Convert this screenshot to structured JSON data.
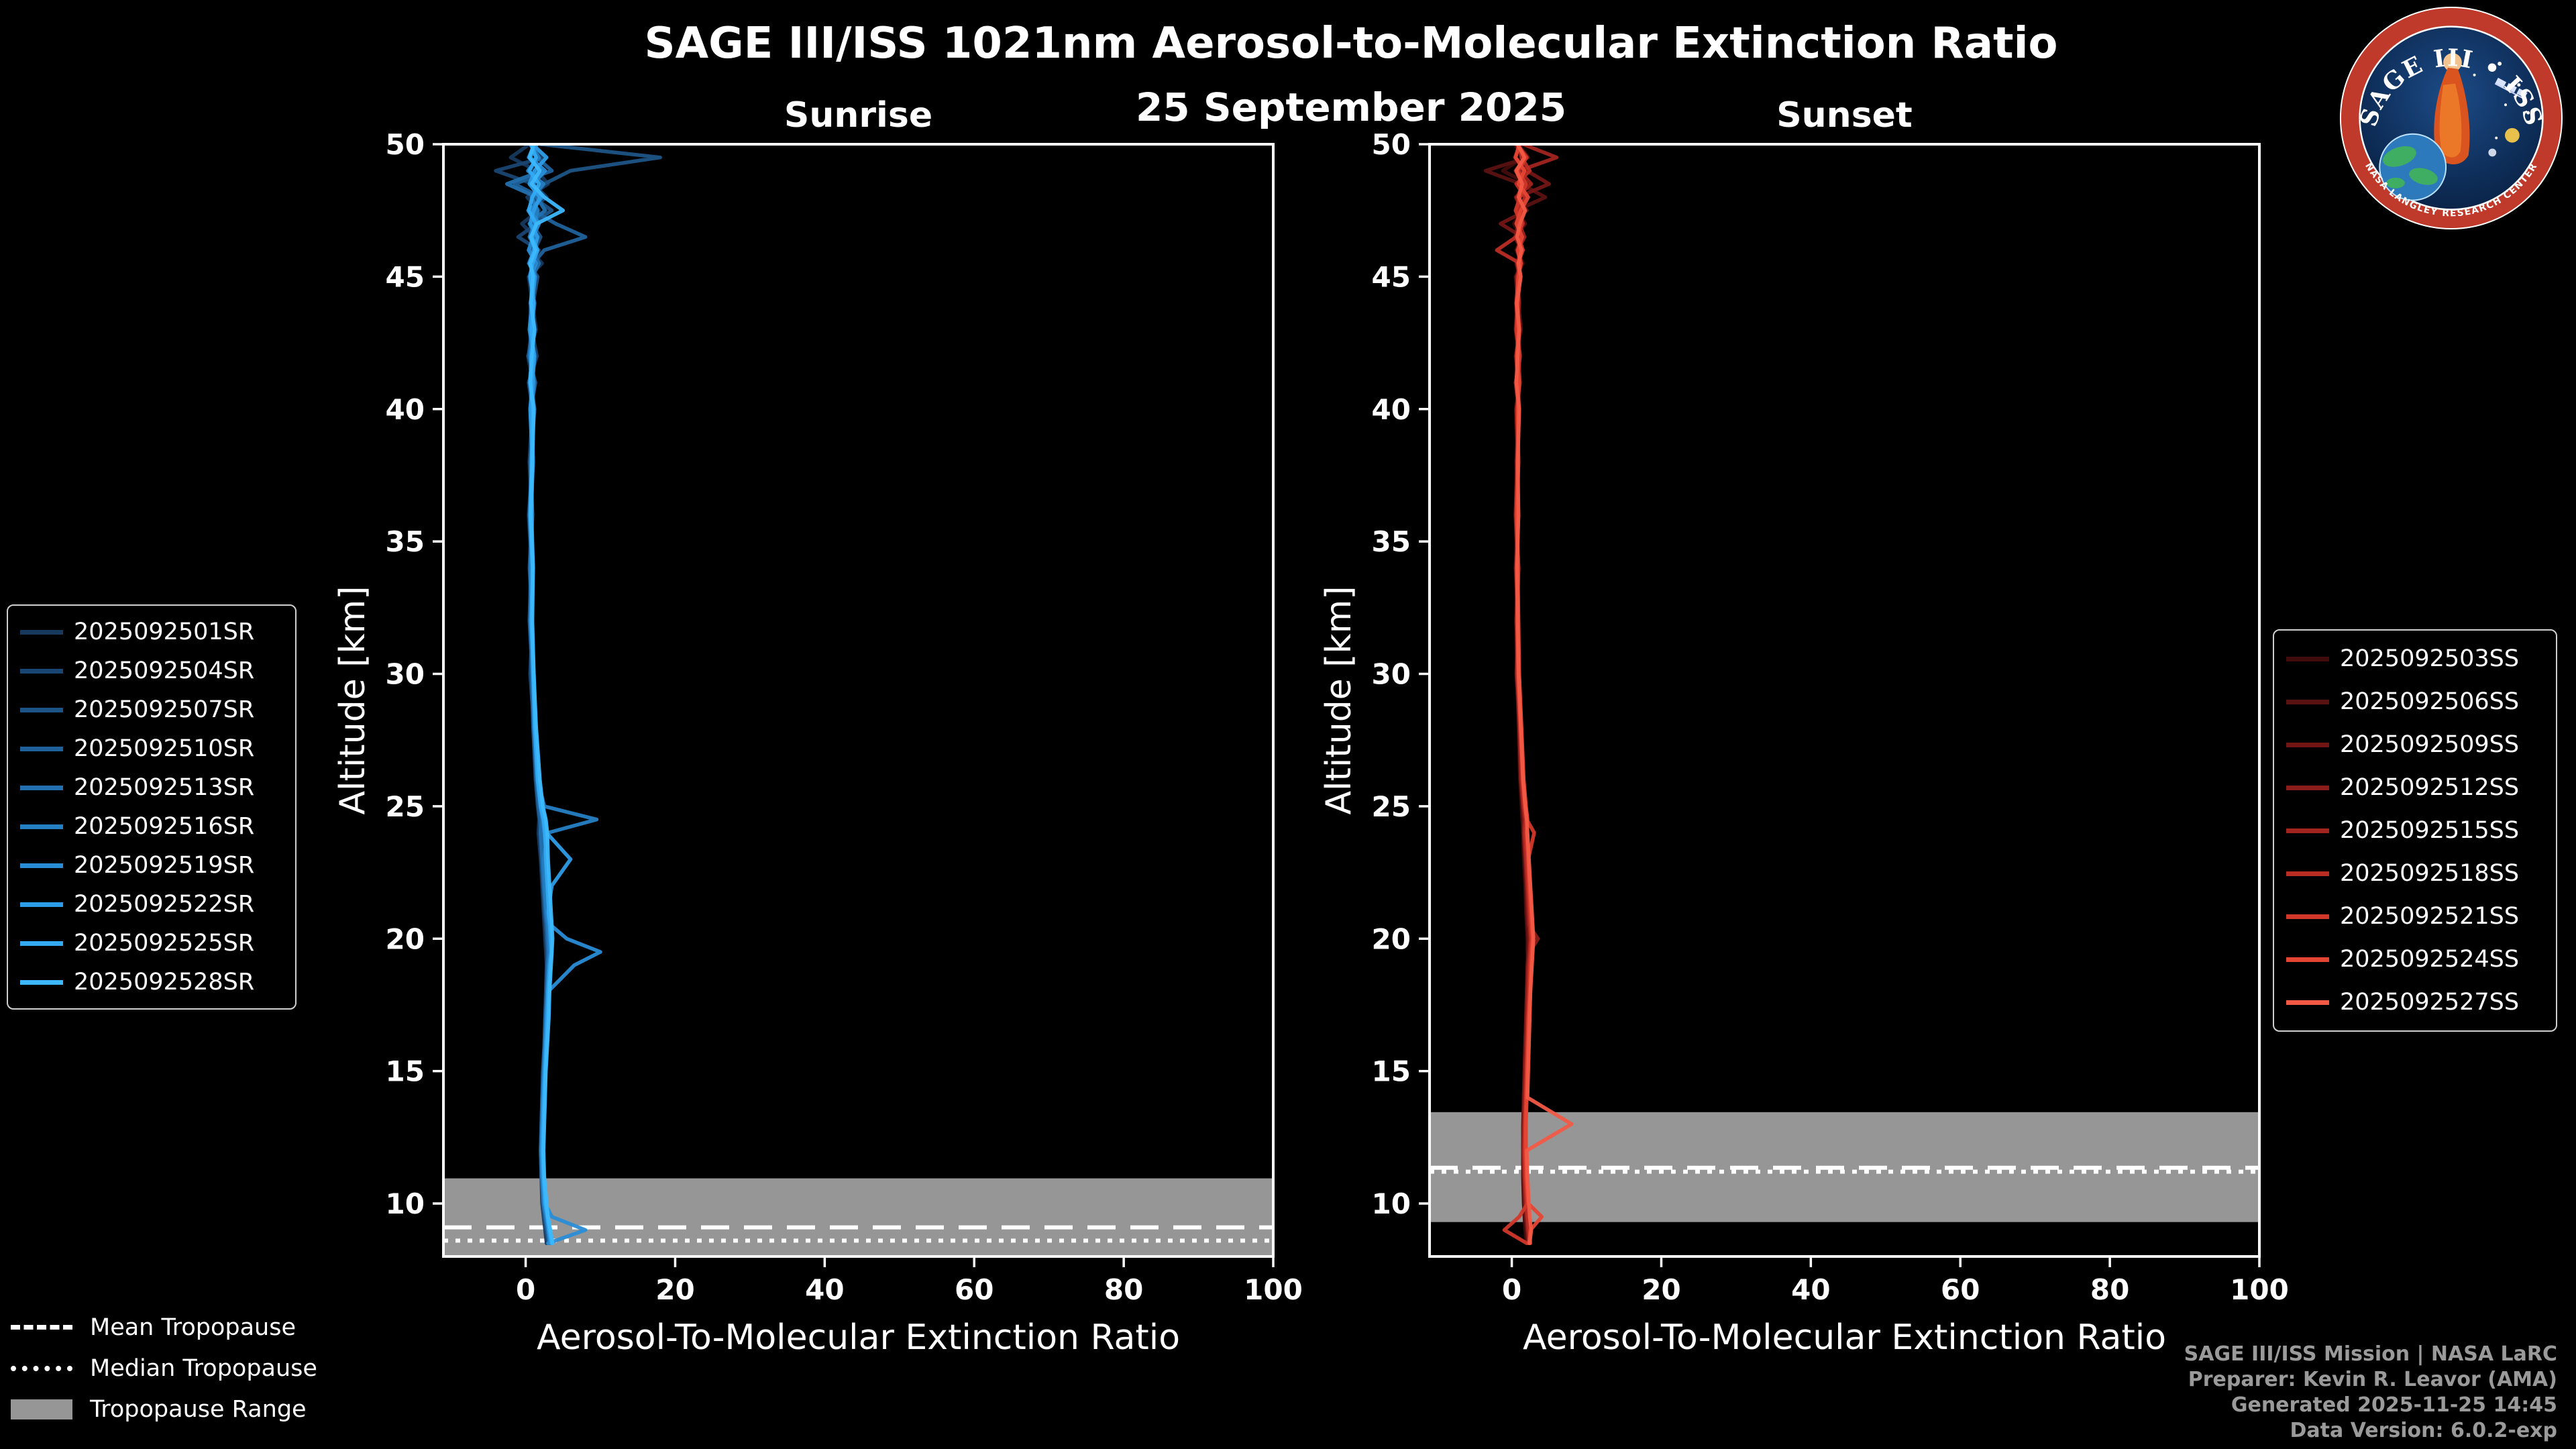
{
  "title": "SAGE III/ISS 1021nm Aerosol-to-Molecular Extinction Ratio",
  "date": "25 September 2025",
  "panels": [
    {
      "title": "Sunrise",
      "xlabel": "Aerosol-To-Molecular Extinction Ratio",
      "ylabel": "Altitude [km]"
    },
    {
      "title": "Sunset",
      "xlabel": "Aerosol-To-Molecular Extinction Ratio",
      "ylabel": "Altitude [km]"
    }
  ],
  "chart_data": {
    "type": "line",
    "xlim": [
      -11,
      100
    ],
    "ylim": [
      8,
      50
    ],
    "x_ticks": [
      0,
      20,
      40,
      60,
      80,
      100
    ],
    "y_ticks": [
      10,
      15,
      20,
      25,
      30,
      35,
      40,
      45,
      50
    ],
    "band_color": "#969696",
    "frame_color": "#ffffff",
    "altitudes": [
      50,
      49.5,
      49,
      48.5,
      48,
      47.5,
      47,
      46.5,
      46,
      45.5,
      45,
      44,
      43,
      42,
      41,
      40,
      38,
      36,
      34,
      32,
      30,
      28,
      26,
      25,
      24.5,
      24,
      23,
      22,
      21,
      20.5,
      20,
      19.5,
      19,
      18,
      17,
      16,
      15,
      14,
      13,
      12,
      11,
      10,
      9.5,
      9,
      8.5
    ],
    "sunrise": {
      "tropopause": {
        "mean": 9.1,
        "median": 8.6,
        "range": [
          8.0,
          10.95
        ]
      },
      "series": [
        {
          "name": "2025092501SR",
          "color": "#16395d",
          "values": [
            0.5,
            -2.0,
            1.5,
            3.0,
            0.2,
            1.8,
            -0.5,
            1.2,
            0.6,
            2.2,
            0.4,
            0.9,
            1.4,
            0.3,
            1.0,
            0.6,
            0.9,
            0.4,
            0.8,
            0.6,
            0.8,
            1.0,
            1.3,
            1.6,
            1.8,
            1.7,
            2.0,
            2.2,
            2.4,
            2.5,
            2.6,
            2.7,
            2.8,
            2.7,
            2.6,
            2.5,
            2.4,
            2.3,
            2.2,
            2.1,
            2.1,
            2.2,
            2.4,
            2.6,
            2.8
          ]
        },
        {
          "name": "2025092504SR",
          "color": "#194672",
          "values": [
            1.0,
            2.5,
            -4.0,
            1.0,
            2.8,
            0.3,
            1.5,
            -1.0,
            1.8,
            0.5,
            1.2,
            0.6,
            0.8,
            1.5,
            0.4,
            0.9,
            0.5,
            0.8,
            0.5,
            0.9,
            0.6,
            1.1,
            1.4,
            1.7,
            2.0,
            1.9,
            2.1,
            2.3,
            2.5,
            2.7,
            2.8,
            2.9,
            2.8,
            2.7,
            2.6,
            2.5,
            2.4,
            2.2,
            2.1,
            2.0,
            2.1,
            2.3,
            2.5,
            2.7,
            3.0
          ]
        },
        {
          "name": "2025092507SR",
          "color": "#1c5486",
          "values": [
            2.0,
            18.0,
            6.0,
            2.5,
            1.0,
            3.5,
            0.8,
            2.0,
            1.2,
            0.4,
            1.6,
            1.0,
            0.5,
            1.1,
            0.7,
            1.2,
            0.6,
            0.9,
            0.7,
            0.5,
            0.9,
            1.2,
            1.5,
            1.8,
            2.0,
            2.1,
            2.2,
            2.4,
            2.6,
            2.7,
            2.8,
            2.9,
            3.0,
            2.8,
            2.7,
            2.6,
            2.4,
            2.3,
            2.2,
            2.1,
            2.2,
            2.3,
            2.5,
            2.8,
            3.1
          ]
        },
        {
          "name": "2025092510SR",
          "color": "#1f629b",
          "values": [
            0.8,
            1.5,
            3.5,
            -1.5,
            2.0,
            1.0,
            4.0,
            8.0,
            2.5,
            1.0,
            0.5,
            1.2,
            0.8,
            0.4,
            1.3,
            0.7,
            1.0,
            0.6,
            0.9,
            0.7,
            0.8,
            1.0,
            1.4,
            1.7,
            1.9,
            2.0,
            2.3,
            2.5,
            2.6,
            2.8,
            2.9,
            3.0,
            2.9,
            2.8,
            2.6,
            2.5,
            2.3,
            2.2,
            2.1,
            2.0,
            2.1,
            2.4,
            2.6,
            2.9,
            3.2
          ]
        },
        {
          "name": "2025092513SR",
          "color": "#2270af",
          "values": [
            1.2,
            0.4,
            2.2,
            -2.5,
            1.5,
            2.6,
            0.5,
            1.5,
            0.8,
            1.8,
            0.9,
            0.7,
            1.1,
            0.9,
            0.5,
            1.0,
            0.8,
            0.5,
            0.8,
            0.6,
            0.9,
            1.1,
            1.5,
            1.9,
            2.2,
            2.0,
            2.2,
            2.4,
            2.7,
            2.9,
            3.0,
            3.1,
            3.0,
            2.9,
            2.7,
            2.6,
            2.4,
            2.3,
            2.2,
            2.1,
            2.2,
            2.5,
            2.7,
            3.0,
            3.3
          ]
        },
        {
          "name": "2025092516SR",
          "color": "#257fc3",
          "values": [
            0.6,
            1.8,
            0.3,
            2.4,
            0.8,
            1.6,
            1.2,
            0.5,
            1.5,
            0.7,
            1.3,
            0.8,
            0.5,
            1.0,
            0.8,
            1.1,
            0.7,
            0.9,
            0.6,
            0.8,
            1.0,
            1.2,
            1.6,
            2.5,
            9.5,
            3.0,
            2.4,
            2.6,
            2.8,
            3.0,
            3.1,
            3.2,
            3.1,
            2.9,
            2.8,
            2.6,
            2.5,
            2.3,
            2.2,
            2.1,
            2.2,
            2.4,
            2.7,
            3.0,
            3.2
          ]
        },
        {
          "name": "2025092519SR",
          "color": "#298dd6",
          "values": [
            1.5,
            0.6,
            2.6,
            1.0,
            2.2,
            0.6,
            1.8,
            1.0,
            0.4,
            1.4,
            0.7,
            1.0,
            0.9,
            0.6,
            1.1,
            0.8,
            1.0,
            0.7,
            0.9,
            0.8,
            1.0,
            1.3,
            1.7,
            2.0,
            2.3,
            2.5,
            2.8,
            3.0,
            3.2,
            3.4,
            5.5,
            10.0,
            6.5,
            3.0,
            2.8,
            2.7,
            2.5,
            2.4,
            2.3,
            2.2,
            2.3,
            2.6,
            3.5,
            8.0,
            3.0
          ]
        },
        {
          "name": "2025092522SR",
          "color": "#2d9ce6",
          "values": [
            0.9,
            2.8,
            1.2,
            0.5,
            1.9,
            1.1,
            0.6,
            1.6,
            1.1,
            0.5,
            1.2,
            0.9,
            0.6,
            1.2,
            0.9,
            0.6,
            0.9,
            0.8,
            1.0,
            0.7,
            1.1,
            1.3,
            1.8,
            2.2,
            2.6,
            2.8,
            6.0,
            3.5,
            3.0,
            3.2,
            3.3,
            3.4,
            3.2,
            3.0,
            2.9,
            2.7,
            2.6,
            2.4,
            2.3,
            2.2,
            2.4,
            2.7,
            2.9,
            3.1,
            3.4
          ]
        },
        {
          "name": "2025092525SR",
          "color": "#33aaf2",
          "values": [
            0.7,
            1.4,
            0.5,
            1.8,
            0.9,
            0.4,
            1.4,
            0.8,
            1.6,
            0.9,
            0.6,
            1.1,
            0.8,
            1.0,
            0.7,
            0.9,
            0.8,
            0.6,
            0.9,
            0.8,
            1.0,
            1.2,
            1.6,
            2.0,
            2.4,
            2.6,
            2.7,
            2.9,
            3.1,
            3.3,
            3.4,
            3.5,
            3.3,
            3.1,
            3.0,
            2.8,
            2.6,
            2.5,
            2.4,
            2.3,
            2.4,
            2.6,
            2.9,
            3.2,
            3.5
          ]
        },
        {
          "name": "2025092528SR",
          "color": "#3db8fc",
          "values": [
            1.1,
            0.5,
            1.9,
            0.8,
            2.5,
            5.0,
            1.5,
            0.7,
            1.3,
            0.6,
            1.0,
            0.7,
            1.2,
            0.8,
            0.6,
            1.1,
            0.9,
            0.7,
            1.0,
            0.9,
            1.1,
            1.4,
            1.9,
            2.3,
            2.7,
            2.9,
            3.0,
            3.2,
            3.4,
            3.5,
            3.6,
            3.5,
            3.4,
            3.2,
            3.1,
            2.9,
            2.7,
            2.6,
            2.5,
            2.4,
            2.5,
            2.8,
            3.0,
            3.3,
            3.6
          ]
        }
      ]
    },
    "sunset": {
      "tropopause": {
        "mean": 11.35,
        "median": 11.2,
        "range": [
          9.3,
          13.45
        ]
      },
      "series": [
        {
          "name": "2025092503SS",
          "color": "#420c0c",
          "values": [
            0.4,
            1.6,
            -1.2,
            2.2,
            0.5,
            1.4,
            0.3,
            1.2,
            0.6,
            1.5,
            0.5,
            0.8,
            1.1,
            0.5,
            0.9,
            0.6,
            0.8,
            0.5,
            0.7,
            0.6,
            0.7,
            0.9,
            1.1,
            1.3,
            1.4,
            1.5,
            1.6,
            1.8,
            1.9,
            2.0,
            2.1,
            2.1,
            2.2,
            2.1,
            2.0,
            1.9,
            1.8,
            1.7,
            1.6,
            1.5,
            1.5,
            1.6,
            1.7,
            1.8,
            2.0
          ]
        },
        {
          "name": "2025092506SS",
          "color": "#5a1111",
          "values": [
            0.8,
            2.2,
            -3.5,
            1.2,
            4.5,
            0.6,
            1.8,
            0.4,
            1.3,
            0.6,
            1.1,
            0.7,
            0.5,
            1.0,
            0.6,
            0.9,
            0.6,
            0.8,
            0.5,
            0.8,
            0.6,
            1.0,
            1.2,
            1.4,
            1.5,
            1.6,
            1.8,
            1.9,
            2.0,
            2.1,
            2.2,
            2.2,
            2.1,
            2.0,
            1.9,
            1.8,
            1.7,
            1.6,
            1.5,
            1.5,
            1.6,
            1.7,
            1.8,
            2.0,
            2.1
          ]
        },
        {
          "name": "2025092509SS",
          "color": "#721615",
          "values": [
            1.2,
            0.4,
            2.0,
            5.0,
            0.8,
            2.0,
            -1.5,
            1.4,
            0.7,
            1.2,
            0.6,
            0.9,
            1.2,
            0.6,
            1.0,
            0.7,
            0.9,
            0.6,
            0.8,
            0.7,
            0.8,
            1.0,
            1.3,
            1.5,
            1.6,
            1.7,
            1.9,
            2.0,
            2.1,
            2.2,
            2.3,
            2.2,
            2.1,
            2.0,
            1.9,
            1.8,
            1.7,
            1.6,
            1.6,
            1.5,
            1.6,
            1.8,
            1.9,
            2.1,
            2.2
          ]
        },
        {
          "name": "2025092512SS",
          "color": "#8a1c19",
          "values": [
            0.6,
            1.8,
            0.5,
            1.5,
            0.7,
            1.6,
            0.9,
            0.5,
            1.4,
            0.7,
            1.0,
            0.6,
            0.8,
            1.1,
            0.5,
            0.9,
            0.7,
            0.5,
            0.8,
            0.6,
            0.8,
            1.0,
            1.2,
            1.5,
            1.7,
            1.6,
            1.8,
            2.0,
            2.2,
            2.3,
            3.5,
            2.4,
            2.2,
            2.1,
            2.0,
            1.9,
            1.8,
            1.7,
            1.6,
            1.6,
            1.7,
            1.8,
            2.0,
            2.1,
            2.3
          ]
        },
        {
          "name": "2025092515SS",
          "color": "#a2241e",
          "values": [
            1.5,
            6.0,
            1.0,
            2.6,
            0.6,
            1.5,
            1.0,
            1.7,
            0.8,
            1.3,
            0.7,
            1.0,
            0.6,
            0.9,
            1.1,
            0.6,
            0.8,
            0.6,
            0.9,
            0.7,
            0.9,
            1.1,
            1.3,
            1.6,
            1.8,
            1.7,
            1.9,
            2.1,
            2.3,
            2.4,
            2.5,
            2.4,
            2.3,
            2.2,
            2.1,
            2.0,
            1.9,
            1.8,
            1.7,
            1.6,
            1.7,
            1.9,
            2.1,
            2.2,
            2.4
          ]
        },
        {
          "name": "2025092518SS",
          "color": "#ba2d24",
          "values": [
            0.9,
            1.3,
            2.4,
            0.6,
            1.8,
            0.8,
            1.5,
            0.6,
            -2.0,
            1.1,
            0.8,
            0.7,
            1.0,
            0.6,
            0.8,
            1.0,
            0.7,
            0.9,
            0.6,
            0.8,
            0.7,
            1.1,
            1.4,
            1.6,
            1.9,
            1.8,
            2.0,
            2.2,
            2.4,
            2.5,
            2.6,
            2.5,
            2.4,
            2.3,
            2.2,
            2.1,
            2.0,
            1.9,
            1.8,
            1.7,
            1.8,
            2.0,
            2.1,
            2.3,
            2.5
          ]
        },
        {
          "name": "2025092521SS",
          "color": "#d1382a",
          "values": [
            0.7,
            2.0,
            0.8,
            1.9,
            1.1,
            0.5,
            1.3,
            0.9,
            1.5,
            0.8,
            1.1,
            0.8,
            0.6,
            1.1,
            0.7,
            0.9,
            0.8,
            0.6,
            0.9,
            0.7,
            0.9,
            1.2,
            1.5,
            1.8,
            2.0,
            3.0,
            2.2,
            2.3,
            2.5,
            2.6,
            2.7,
            2.6,
            2.5,
            2.4,
            2.2,
            2.1,
            2.0,
            1.9,
            1.8,
            1.8,
            1.9,
            2.1,
            1.0,
            -1.0,
            2.0
          ]
        },
        {
          "name": "2025092524SS",
          "color": "#e54634",
          "values": [
            1.0,
            0.5,
            1.7,
            0.9,
            2.2,
            1.2,
            0.6,
            1.4,
            0.8,
            1.2,
            0.9,
            0.6,
            0.9,
            0.7,
            1.0,
            0.8,
            0.9,
            0.7,
            0.8,
            0.9,
            1.0,
            1.3,
            1.6,
            1.9,
            2.1,
            2.0,
            2.2,
            2.4,
            2.6,
            2.7,
            2.8,
            2.7,
            2.6,
            2.5,
            2.3,
            2.2,
            2.1,
            2.0,
            1.9,
            1.9,
            2.0,
            2.2,
            4.0,
            2.5,
            2.3
          ]
        },
        {
          "name": "2025092527SS",
          "color": "#f25a45",
          "values": [
            0.8,
            1.7,
            0.6,
            1.4,
            0.9,
            1.8,
            1.1,
            0.7,
            1.3,
            0.9,
            1.2,
            0.7,
            1.0,
            0.8,
            0.6,
            1.0,
            0.8,
            0.9,
            0.7,
            0.8,
            0.9,
            1.2,
            1.5,
            1.8,
            2.0,
            2.1,
            2.3,
            2.5,
            2.7,
            2.8,
            2.9,
            2.8,
            2.7,
            2.5,
            2.4,
            2.3,
            2.2,
            2.1,
            8.0,
            2.0,
            2.1,
            2.3,
            2.4,
            2.6,
            2.4
          ]
        }
      ]
    }
  },
  "tropopause_legend": [
    {
      "label": "Mean Tropopause",
      "style": "dashed"
    },
    {
      "label": "Median Tropopause",
      "style": "dotted"
    },
    {
      "label": "Tropopause Range",
      "style": "band"
    }
  ],
  "credits": [
    "SAGE III/ISS Mission | NASA LaRC",
    "Preparer: Kevin R. Leavor (AMA)",
    "Generated 2025-11-25 14:45",
    "Data Version: 6.0.2-exp"
  ],
  "logo": {
    "title": "SAGE III • ISS",
    "ring_text": "NASA LANGLEY RESEARCH CENTER"
  }
}
